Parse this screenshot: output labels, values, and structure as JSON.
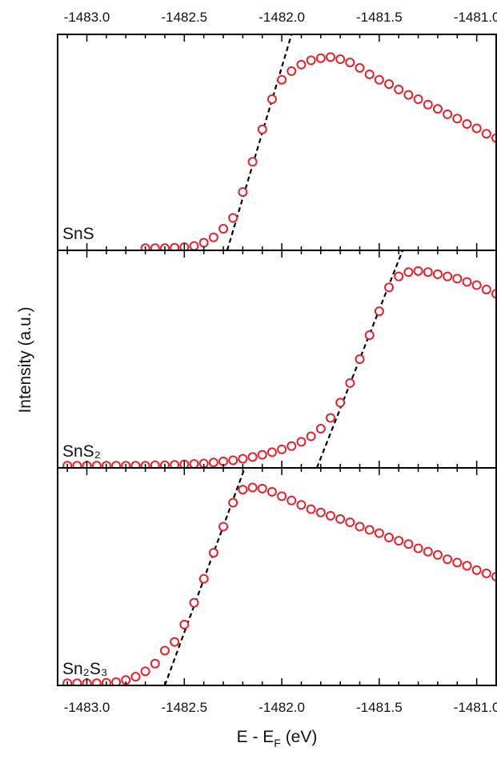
{
  "chart_data": [
    {
      "type": "scatter",
      "label": "SnS",
      "color": "#e8202a",
      "fit_color": "#000000",
      "xtick_labels": "top",
      "xlim": [
        -1483.15,
        -1480.9
      ],
      "ylim": [
        0,
        1
      ],
      "xticks": [
        {
          "value": -1483,
          "label": "-1483.0"
        },
        {
          "value": -1482.5,
          "label": "-1482.5"
        },
        {
          "value": -1482,
          "label": "-1482.0"
        },
        {
          "value": -1481.5,
          "label": "-1481.5"
        },
        {
          "value": -1481,
          "label": "-1481.0"
        }
      ],
      "x": [
        -1482.7,
        -1482.65,
        -1482.6,
        -1482.55,
        -1482.5,
        -1482.45,
        -1482.4,
        -1482.35,
        -1482.3,
        -1482.25,
        -1482.2,
        -1482.15,
        -1482.1,
        -1482.05,
        -1482,
        -1481.95,
        -1481.9,
        -1481.85,
        -1481.8,
        -1481.75,
        -1481.7,
        -1481.65,
        -1481.6,
        -1481.55,
        -1481.5,
        -1481.45,
        -1481.4,
        -1481.35,
        -1481.3,
        -1481.25,
        -1481.2,
        -1481.15,
        -1481.1,
        -1481.05,
        -1481,
        -1480.95,
        -1480.9
      ],
      "values": [
        0.01,
        0.01,
        0.01,
        0.012,
        0.015,
        0.02,
        0.035,
        0.06,
        0.1,
        0.15,
        0.27,
        0.41,
        0.56,
        0.7,
        0.79,
        0.83,
        0.86,
        0.88,
        0.89,
        0.895,
        0.885,
        0.87,
        0.845,
        0.815,
        0.79,
        0.77,
        0.745,
        0.72,
        0.7,
        0.675,
        0.655,
        0.63,
        0.61,
        0.585,
        0.565,
        0.54,
        0.52
      ],
      "fit": {
        "x": [
          -1482.28,
          -1481.95
        ],
        "values": [
          0,
          1
        ]
      }
    },
    {
      "type": "scatter",
      "label": "SnS₂",
      "color": "#e8202a",
      "fit_color": "#000000",
      "xtick_labels": "none",
      "ylabel": "Intensity (a.u.)",
      "xlim": [
        -1483.15,
        -1480.9
      ],
      "ylim": [
        0,
        1
      ],
      "xticks": [
        {
          "value": -1483,
          "label": "-1483.0"
        },
        {
          "value": -1482.5,
          "label": "-1482.5"
        },
        {
          "value": -1482,
          "label": "-1482.0"
        },
        {
          "value": -1481.5,
          "label": "-1481.5"
        },
        {
          "value": -1481,
          "label": "-1481.0"
        }
      ],
      "x": [
        -1483.1,
        -1483.05,
        -1483,
        -1482.95,
        -1482.9,
        -1482.85,
        -1482.8,
        -1482.75,
        -1482.7,
        -1482.65,
        -1482.6,
        -1482.55,
        -1482.5,
        -1482.45,
        -1482.4,
        -1482.35,
        -1482.3,
        -1482.25,
        -1482.2,
        -1482.15,
        -1482.1,
        -1482.05,
        -1482,
        -1481.95,
        -1481.9,
        -1481.85,
        -1481.8,
        -1481.75,
        -1481.7,
        -1481.65,
        -1481.6,
        -1481.55,
        -1481.5,
        -1481.45,
        -1481.4,
        -1481.35,
        -1481.3,
        -1481.25,
        -1481.2,
        -1481.15,
        -1481.1,
        -1481.05,
        -1481,
        -1480.95,
        -1480.9
      ],
      "values": [
        0.01,
        0.01,
        0.01,
        0.01,
        0.01,
        0.01,
        0.01,
        0.01,
        0.01,
        0.012,
        0.012,
        0.014,
        0.016,
        0.018,
        0.02,
        0.025,
        0.03,
        0.035,
        0.042,
        0.05,
        0.06,
        0.072,
        0.085,
        0.1,
        0.12,
        0.145,
        0.18,
        0.23,
        0.3,
        0.39,
        0.5,
        0.61,
        0.72,
        0.83,
        0.88,
        0.9,
        0.905,
        0.9,
        0.89,
        0.88,
        0.87,
        0.855,
        0.84,
        0.82,
        0.8
      ],
      "fit": {
        "x": [
          -1481.82,
          -1481.38
        ],
        "values": [
          0,
          1
        ]
      }
    },
    {
      "type": "scatter",
      "label": "Sn₂S₃",
      "color": "#e8202a",
      "fit_color": "#000000",
      "xtick_labels": "bottom",
      "xlabel": {
        "text": "E - E",
        "subscript": "F",
        "suffix": " (eV)"
      },
      "xlim": [
        -1483.15,
        -1480.9
      ],
      "ylim": [
        0,
        1
      ],
      "xticks": [
        {
          "value": -1483,
          "label": "-1483.0"
        },
        {
          "value": -1482.5,
          "label": "-1482.5"
        },
        {
          "value": -1482,
          "label": "-1482.0"
        },
        {
          "value": -1481.5,
          "label": "-1481.5"
        },
        {
          "value": -1481,
          "label": "-1481.0"
        }
      ],
      "x": [
        -1483.1,
        -1483.05,
        -1483,
        -1482.95,
        -1482.9,
        -1482.85,
        -1482.8,
        -1482.75,
        -1482.7,
        -1482.65,
        -1482.6,
        -1482.55,
        -1482.5,
        -1482.45,
        -1482.4,
        -1482.35,
        -1482.3,
        -1482.25,
        -1482.2,
        -1482.15,
        -1482.1,
        -1482.05,
        -1482,
        -1481.95,
        -1481.9,
        -1481.85,
        -1481.8,
        -1481.75,
        -1481.7,
        -1481.65,
        -1481.6,
        -1481.55,
        -1481.5,
        -1481.45,
        -1481.4,
        -1481.35,
        -1481.3,
        -1481.25,
        -1481.2,
        -1481.15,
        -1481.1,
        -1481.05,
        -1481,
        -1480.95,
        -1480.9
      ],
      "values": [
        0.01,
        0.01,
        0.01,
        0.01,
        0.012,
        0.015,
        0.025,
        0.04,
        0.065,
        0.1,
        0.16,
        0.2,
        0.28,
        0.38,
        0.49,
        0.61,
        0.73,
        0.84,
        0.9,
        0.91,
        0.905,
        0.89,
        0.87,
        0.85,
        0.83,
        0.81,
        0.795,
        0.78,
        0.765,
        0.75,
        0.73,
        0.715,
        0.7,
        0.68,
        0.665,
        0.65,
        0.63,
        0.615,
        0.6,
        0.58,
        0.565,
        0.55,
        0.53,
        0.515,
        0.5
      ],
      "fit": {
        "x": [
          -1482.6,
          -1482.19
        ],
        "values": [
          0,
          1
        ]
      }
    }
  ]
}
